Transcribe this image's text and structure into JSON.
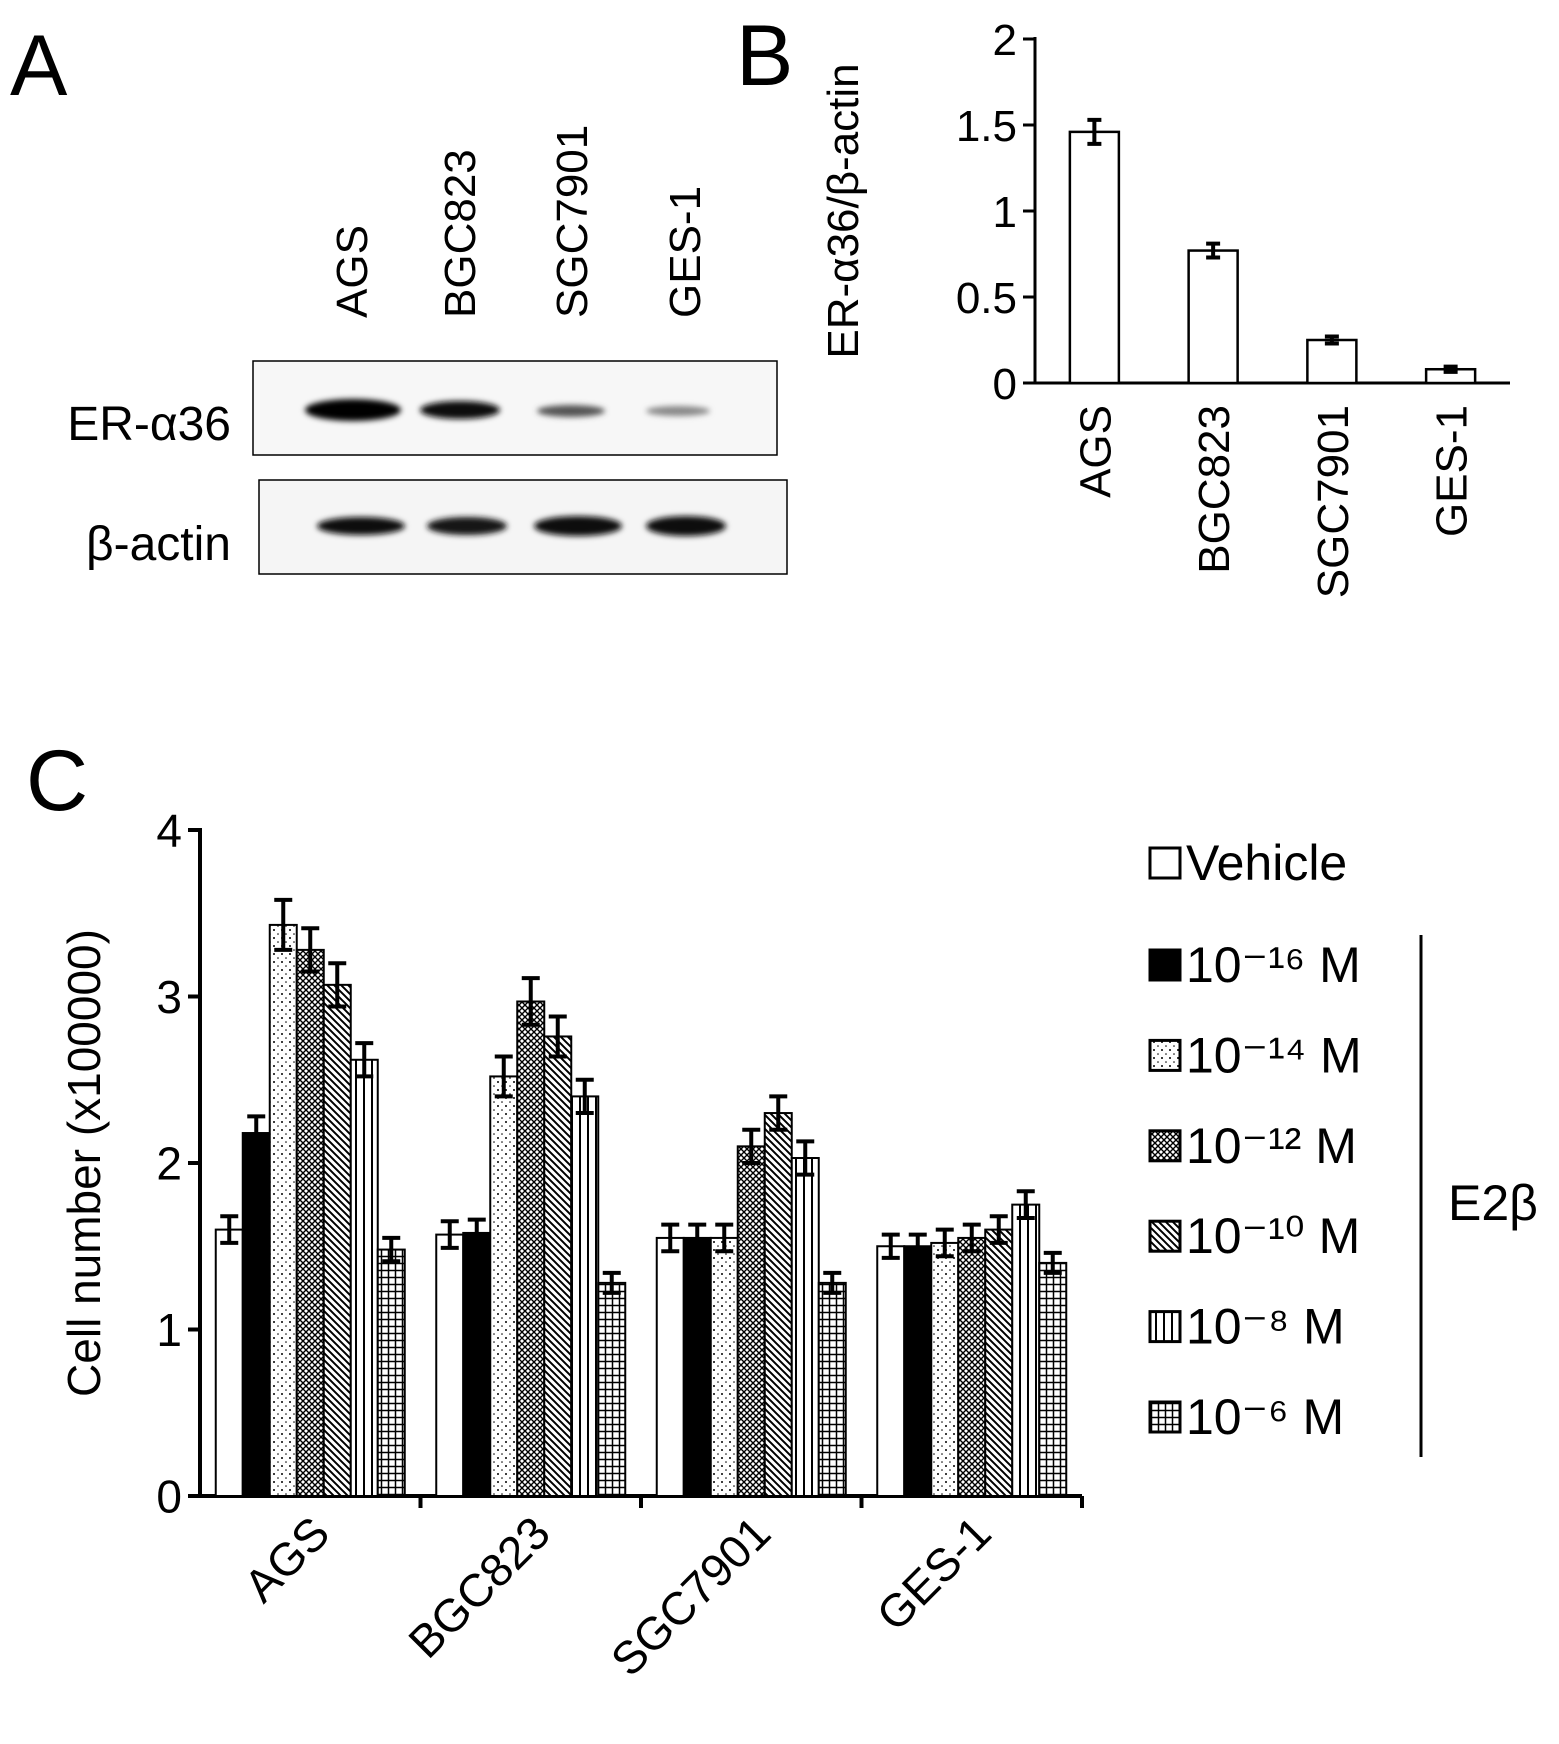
{
  "panel_labels": [
    "A",
    "B",
    "C"
  ],
  "blot": {
    "lanes": [
      "AGS",
      "BGC823",
      "SGC7901",
      "GES-1"
    ],
    "rows": [
      "ER-α36",
      "β-actin"
    ]
  },
  "chart_data": [
    {
      "type": "bar",
      "ylabel": "ER-α36/β-actin",
      "categories": [
        "AGS",
        "BGC823",
        "SGC7901",
        "GES-1"
      ],
      "values": [
        1.46,
        0.77,
        0.25,
        0.08
      ],
      "errors": [
        0.07,
        0.04,
        0.02,
        0.015
      ],
      "color": "#ffffff",
      "ylim": [
        0,
        2
      ],
      "yticks": [
        0,
        0.5,
        1,
        1.5,
        2
      ]
    },
    {
      "type": "bar",
      "ylabel": "Cell number (x100000)",
      "categories": [
        "AGS",
        "BGC823",
        "SGC7901",
        "GES-1"
      ],
      "series": [
        {
          "name": "Vehicle",
          "color": "#ffffff",
          "pattern": "none",
          "values": [
            1.6,
            1.57,
            1.55,
            1.5
          ],
          "errors": [
            0.08,
            0.08,
            0.08,
            0.07
          ]
        },
        {
          "name": "10⁻¹⁶ M",
          "color": "#000000",
          "pattern": "none",
          "values": [
            2.18,
            1.58,
            1.55,
            1.5
          ],
          "errors": [
            0.1,
            0.08,
            0.08,
            0.07
          ]
        },
        {
          "name": "10⁻¹⁴ M",
          "color": "#ffffff",
          "pattern": "dots",
          "values": [
            3.43,
            2.52,
            1.55,
            1.52
          ],
          "errors": [
            0.15,
            0.12,
            0.08,
            0.08
          ]
        },
        {
          "name": "10⁻¹² M",
          "color": "#ffffff",
          "pattern": "crosshatch",
          "values": [
            3.28,
            2.97,
            2.1,
            1.55
          ],
          "errors": [
            0.13,
            0.14,
            0.1,
            0.08
          ]
        },
        {
          "name": "10⁻¹⁰ M",
          "color": "#ffffff",
          "pattern": "diagonal",
          "values": [
            3.07,
            2.76,
            2.3,
            1.6
          ],
          "errors": [
            0.13,
            0.12,
            0.1,
            0.08
          ]
        },
        {
          "name": "10⁻⁸ M",
          "color": "#ffffff",
          "pattern": "vertical",
          "values": [
            2.62,
            2.4,
            2.03,
            1.75
          ],
          "errors": [
            0.1,
            0.1,
            0.1,
            0.08
          ]
        },
        {
          "name": "10⁻⁶ M",
          "color": "#ffffff",
          "pattern": "grid",
          "values": [
            1.48,
            1.28,
            1.28,
            1.4
          ],
          "errors": [
            0.07,
            0.06,
            0.06,
            0.06
          ]
        }
      ],
      "legend_group": "E2β",
      "ylim": [
        0,
        4
      ],
      "yticks": [
        0,
        1,
        2,
        3,
        4
      ]
    }
  ]
}
